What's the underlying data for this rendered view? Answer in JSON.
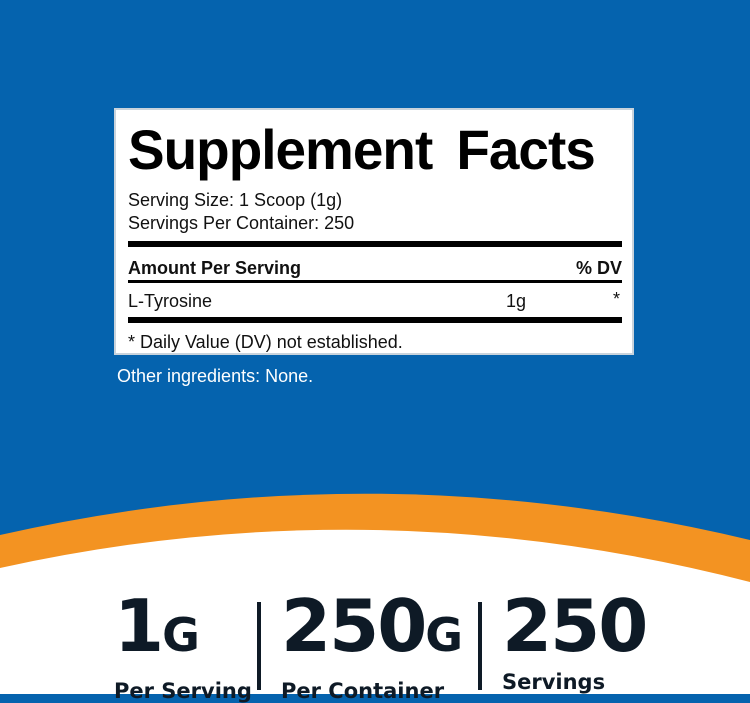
{
  "colors": {
    "background": "#0563ae",
    "accent": "#f39322",
    "text": "#0e1a26"
  },
  "label": {
    "title": "Supplement Facts",
    "serving_size": "Serving Size: 1 Scoop (1g)",
    "servings_per_container": "Servings Per Container: 250",
    "header_amount": "Amount Per Serving",
    "header_dv": "% DV",
    "rows": [
      {
        "name": "L-Tyrosine",
        "amount": "1g",
        "dv": "*"
      }
    ],
    "footnote": "* Daily Value (DV) not established."
  },
  "other_ingredients": "Other ingredients: None.",
  "stats": [
    {
      "value": "1",
      "unit": "G",
      "caption": "Per Serving"
    },
    {
      "value": "250",
      "unit": "G",
      "caption": "Per Container"
    },
    {
      "value": "250",
      "unit": "",
      "caption": "Servings"
    }
  ]
}
